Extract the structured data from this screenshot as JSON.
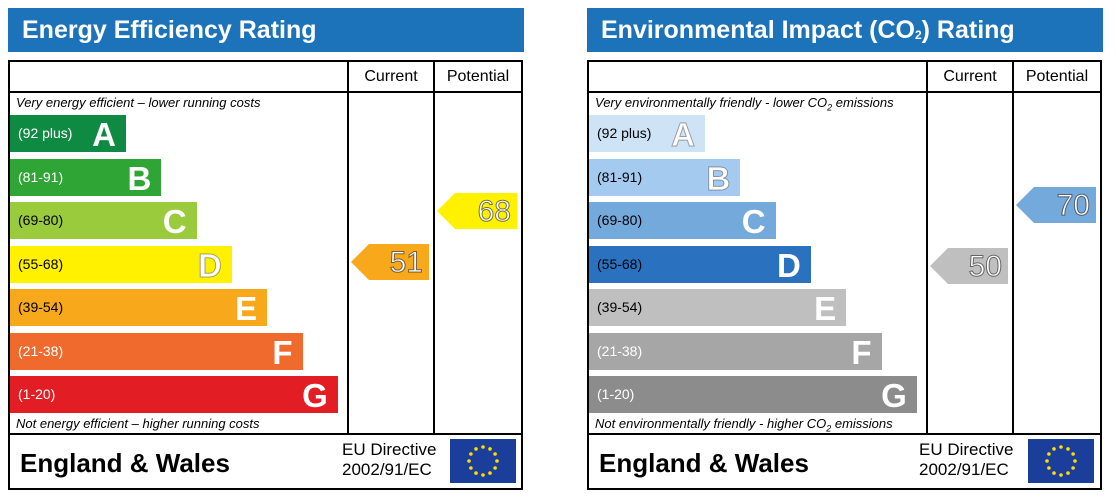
{
  "colors": {
    "title_bg": "#1d73b9",
    "ee_bands": [
      "#0e8a43",
      "#2fa536",
      "#9acb3c",
      "#fff100",
      "#f7a81b",
      "#ef6a2c",
      "#e31d24"
    ],
    "ei_bands": [
      "#cfe3f7",
      "#a4cbef",
      "#74a9db",
      "#2a72c0",
      "#bfbfbf",
      "#a6a6a6",
      "#8c8c8c"
    ],
    "ee_band_text": [
      "#ffffff",
      "#ffffff",
      "#000000",
      "#000000",
      "#000000",
      "#ffffff",
      "#ffffff"
    ],
    "ei_band_text": [
      "#000000",
      "#000000",
      "#000000",
      "#000000",
      "#000000",
      "#ffffff",
      "#ffffff"
    ],
    "flag_blue": "#1a3e9a",
    "flag_star": "#ffdd00"
  },
  "chart_data": [
    {
      "type": "table",
      "title": "Energy Efficiency Rating",
      "columns": [
        "Current",
        "Potential"
      ],
      "top_note": "Very energy efficient – lower running costs",
      "bottom_note": "Not energy efficient – higher running costs",
      "bands": [
        {
          "range": "(92 plus)",
          "letter": "A"
        },
        {
          "range": "(81-91)",
          "letter": "B"
        },
        {
          "range": "(69-80)",
          "letter": "C"
        },
        {
          "range": "(55-68)",
          "letter": "D"
        },
        {
          "range": "(39-54)",
          "letter": "E"
        },
        {
          "range": "(21-38)",
          "letter": "F"
        },
        {
          "range": "(1-20)",
          "letter": "G"
        }
      ],
      "current": {
        "value": 51,
        "band": "E",
        "color": "#f7a81b"
      },
      "potential": {
        "value": 68,
        "band": "D",
        "color": "#fff100"
      },
      "footer": "England & Wales",
      "directive_line1": "EU Directive",
      "directive_line2": "2002/91/EC"
    },
    {
      "type": "table",
      "title_prefix": "Environmental Impact (CO",
      "title_sub": "2",
      "title_suffix": ") Rating",
      "columns": [
        "Current",
        "Potential"
      ],
      "top_note_prefix": "Very environmentally friendly - lower CO",
      "top_note_sub": "2",
      "top_note_suffix": " emissions",
      "bottom_note_prefix": "Not environmentally friendly - higher CO",
      "bottom_note_sub": "2",
      "bottom_note_suffix": " emissions",
      "bands": [
        {
          "range": "(92 plus)",
          "letter": "A"
        },
        {
          "range": "(81-91)",
          "letter": "B"
        },
        {
          "range": "(69-80)",
          "letter": "C"
        },
        {
          "range": "(55-68)",
          "letter": "D"
        },
        {
          "range": "(39-54)",
          "letter": "E"
        },
        {
          "range": "(21-38)",
          "letter": "F"
        },
        {
          "range": "(1-20)",
          "letter": "G"
        }
      ],
      "current": {
        "value": 50,
        "band": "E",
        "color": "#bfbfbf"
      },
      "potential": {
        "value": 70,
        "band": "C",
        "color": "#74a9db"
      },
      "footer": "England & Wales",
      "directive_line1": "EU Directive",
      "directive_line2": "2002/91/EC"
    }
  ]
}
